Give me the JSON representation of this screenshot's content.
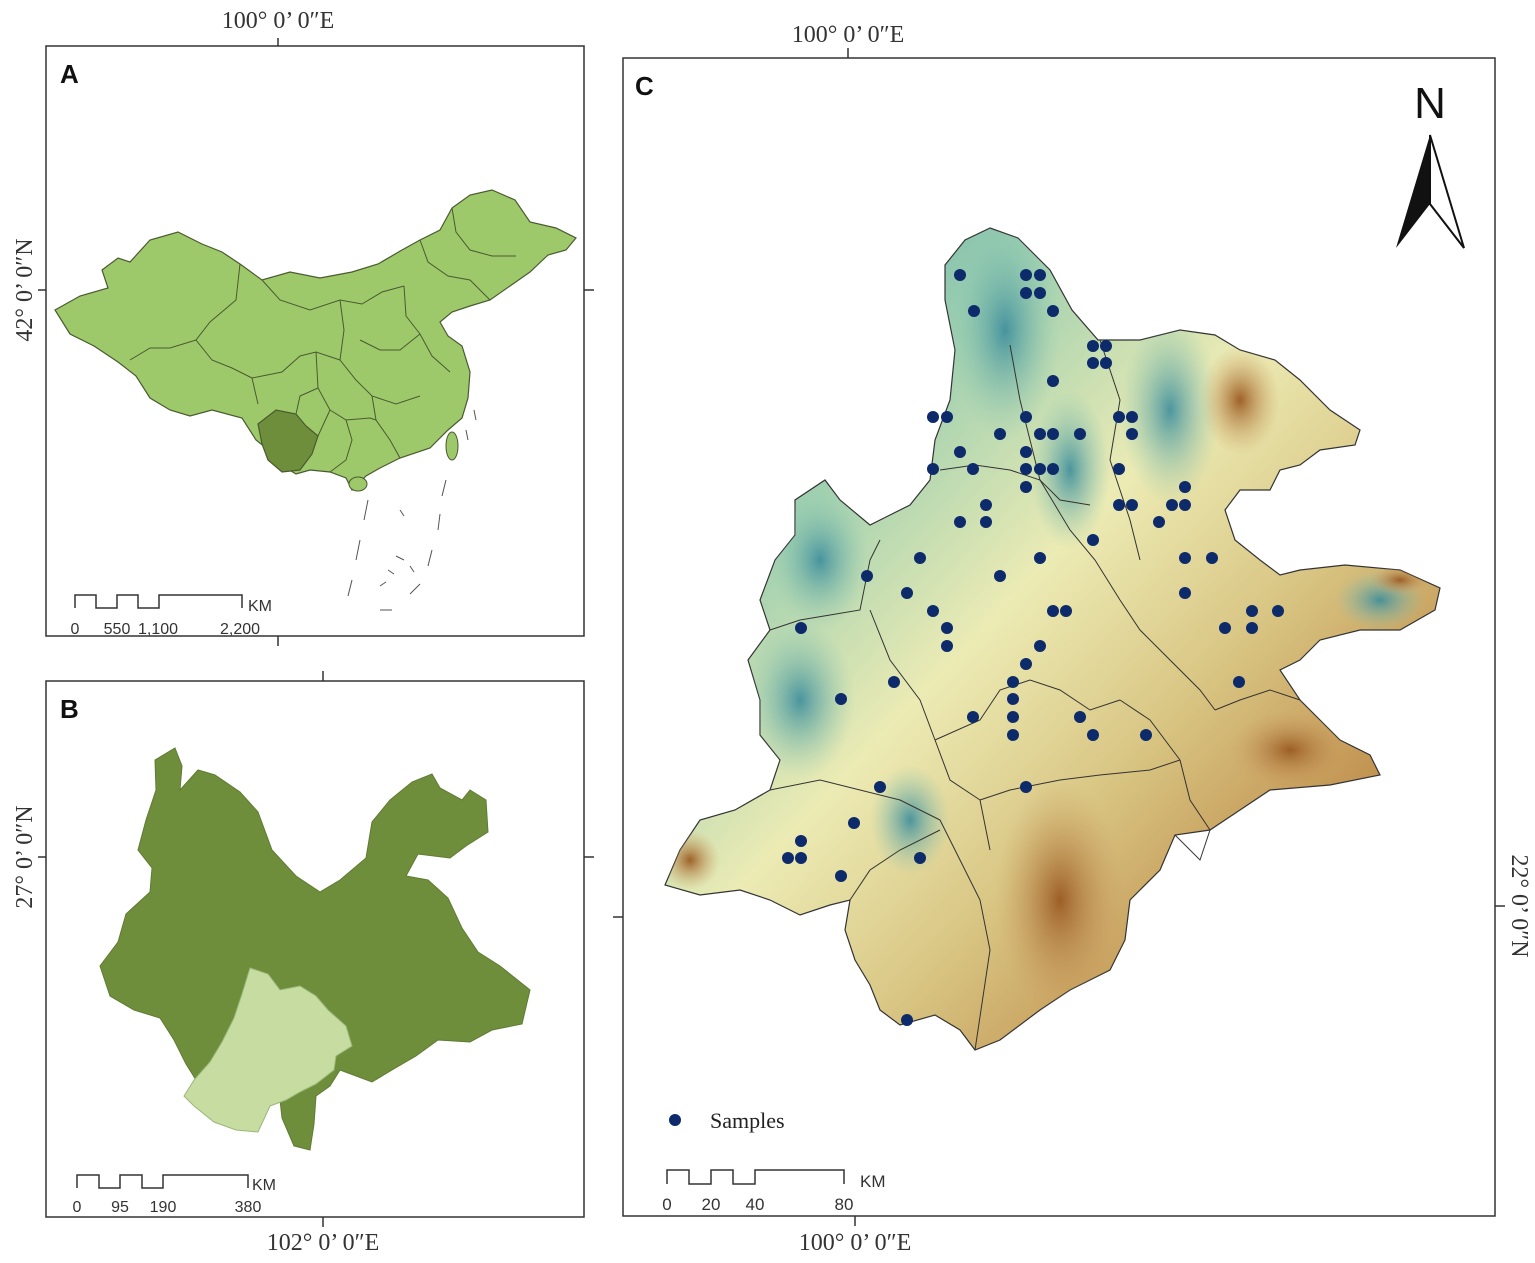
{
  "panel_a": {
    "label": "A",
    "top_coord": "100°  0’ 0″E",
    "left_coord": "42°  0’ 0″N",
    "scale": {
      "unit": "KM",
      "ticks": [
        "0",
        "550",
        "1,100",
        "2,200"
      ]
    }
  },
  "panel_b": {
    "label": "B",
    "bottom_coord": "102°  0’ 0″E",
    "left_coord": "27°  0’ 0″N",
    "scale": {
      "unit": "KM",
      "ticks": [
        "0",
        "95",
        "190",
        "380"
      ]
    }
  },
  "panel_c": {
    "label": "C",
    "top_coord": "100°  0’ 0″E",
    "bottom_coord": "100°  0’ 0″E",
    "right_coord": "22°  0’ 0″N",
    "north_label": "N",
    "legend": {
      "samples_label": "Samples",
      "color": "#0d2a6b"
    },
    "scale": {
      "unit": "KM",
      "ticks": [
        "0",
        "20",
        "40",
        "80"
      ]
    }
  },
  "colors": {
    "china_fill": "#9dc96b",
    "yunnan_highlight": "#6f8e3c",
    "yunnan_fill": "#6f8e3c",
    "study_area_fill": "#c7dca0",
    "sample_dot": "#0d2a6b"
  }
}
